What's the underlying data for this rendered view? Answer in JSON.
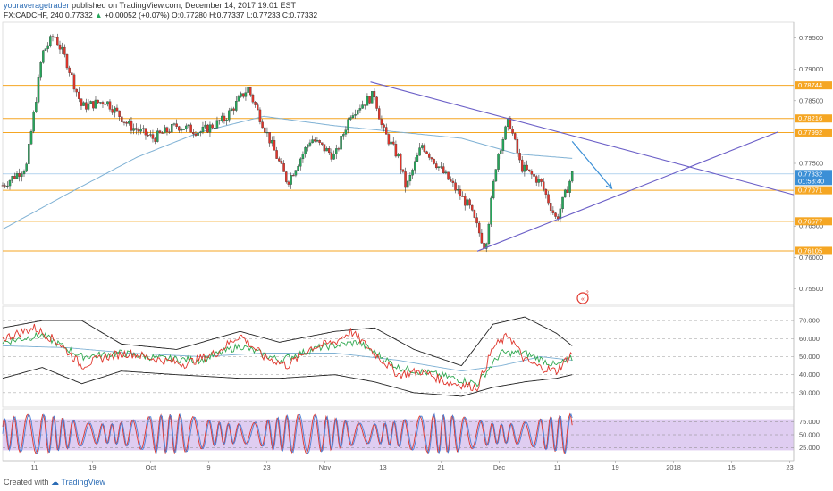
{
  "header": {
    "user": "youraveragetrader",
    "published": "published on TradingView.com, December 14, 2017 19:01 EST",
    "symbol": "FX:CADCHF, 240",
    "last": "0.77332",
    "change_arrow": "▲",
    "change": "+0.00052 (+0.07%)",
    "ohlc": "O:0.77280 H:0.77337 L:0.77233 C:0.77332"
  },
  "footer": {
    "created_with": "Created with",
    "brand": "TradingView"
  },
  "colors": {
    "up": "#26a65b",
    "down": "#e0352b",
    "level": "#f5a623",
    "trendline": "#6b5fc7",
    "ma": "#7fb1d4",
    "arrow": "#3b8fd6",
    "price_tag": "#3b8fd6",
    "stoch_band": "#dcc8f0",
    "rsi_red": "#e0352b",
    "rsi_green": "#2fa84f",
    "rsi_blue": "#7fb1d4",
    "stoch_blue": "#4a7fd6",
    "stoch_red": "#e0352b"
  },
  "chart_data": {
    "type": "candlestick",
    "symbol": "FX:CADCHF",
    "timeframe": "240",
    "ylim": [
      0.7525,
      0.7975
    ],
    "price_axis_ticks": [
      "0.79500",
      "0.79000",
      "0.78500",
      "0.77500",
      "0.76500",
      "0.76000",
      "0.75500"
    ],
    "x_tick_labels": [
      "11",
      "19",
      "Oct",
      "9",
      "23",
      "Nov",
      "13",
      "21",
      "Dec",
      "11",
      "19",
      "2018",
      "15",
      "23"
    ],
    "horizontal_levels": [
      "0.78744",
      "0.78216",
      "0.77992",
      "0.77071",
      "0.76577",
      "0.76105"
    ],
    "current_price": "0.77332",
    "countdown": "01:58:40",
    "price_path": [
      [
        0,
        0.7715
      ],
      [
        0.03,
        0.7745
      ],
      [
        0.05,
        0.7925
      ],
      [
        0.065,
        0.7955
      ],
      [
        0.08,
        0.7915
      ],
      [
        0.1,
        0.784
      ],
      [
        0.13,
        0.785
      ],
      [
        0.16,
        0.781
      ],
      [
        0.19,
        0.779
      ],
      [
        0.22,
        0.781
      ],
      [
        0.25,
        0.78
      ],
      [
        0.28,
        0.782
      ],
      [
        0.31,
        0.787
      ],
      [
        0.33,
        0.781
      ],
      [
        0.36,
        0.772
      ],
      [
        0.39,
        0.779
      ],
      [
        0.42,
        0.776
      ],
      [
        0.44,
        0.783
      ],
      [
        0.47,
        0.786
      ],
      [
        0.48,
        0.7805
      ],
      [
        0.5,
        0.776
      ],
      [
        0.51,
        0.771
      ],
      [
        0.53,
        0.778
      ],
      [
        0.56,
        0.773
      ],
      [
        0.59,
        0.768
      ],
      [
        0.61,
        0.7615
      ],
      [
        0.625,
        0.776
      ],
      [
        0.64,
        0.782
      ],
      [
        0.655,
        0.7745
      ],
      [
        0.68,
        0.772
      ],
      [
        0.7,
        0.766
      ],
      [
        0.72,
        0.7733
      ]
    ],
    "ma_path": [
      [
        0,
        0.7645
      ],
      [
        0.08,
        0.77
      ],
      [
        0.17,
        0.776
      ],
      [
        0.25,
        0.78
      ],
      [
        0.33,
        0.7825
      ],
      [
        0.42,
        0.781
      ],
      [
        0.5,
        0.78
      ],
      [
        0.58,
        0.779
      ],
      [
        0.65,
        0.7765
      ],
      [
        0.72,
        0.7758
      ]
    ],
    "trendline_upper": [
      [
        0.465,
        0.788
      ],
      [
        1.0,
        0.77
      ]
    ],
    "trendline_lower": [
      [
        0.6,
        0.761
      ],
      [
        0.98,
        0.78
      ]
    ],
    "projection_arrow": [
      [
        0.72,
        0.7785
      ],
      [
        0.77,
        0.771
      ]
    ],
    "rsi": {
      "ticks": [
        "70.000",
        "60.000",
        "50.000",
        "40.000",
        "30.000"
      ],
      "ylim": [
        22,
        78
      ],
      "main": [
        [
          0,
          60
        ],
        [
          0.04,
          66
        ],
        [
          0.07,
          58
        ],
        [
          0.1,
          45
        ],
        [
          0.13,
          50
        ],
        [
          0.16,
          52
        ],
        [
          0.2,
          48
        ],
        [
          0.23,
          46
        ],
        [
          0.27,
          52
        ],
        [
          0.3,
          62
        ],
        [
          0.33,
          50
        ],
        [
          0.36,
          45
        ],
        [
          0.39,
          55
        ],
        [
          0.42,
          58
        ],
        [
          0.44,
          64
        ],
        [
          0.47,
          52
        ],
        [
          0.5,
          40
        ],
        [
          0.53,
          42
        ],
        [
          0.56,
          36
        ],
        [
          0.6,
          33
        ],
        [
          0.62,
          55
        ],
        [
          0.64,
          62
        ],
        [
          0.66,
          48
        ],
        [
          0.68,
          44
        ],
        [
          0.7,
          42
        ],
        [
          0.72,
          52
        ]
      ],
      "signal": [
        [
          0,
          58
        ],
        [
          0.05,
          62
        ],
        [
          0.1,
          50
        ],
        [
          0.15,
          52
        ],
        [
          0.2,
          49
        ],
        [
          0.25,
          48
        ],
        [
          0.3,
          56
        ],
        [
          0.35,
          48
        ],
        [
          0.4,
          55
        ],
        [
          0.45,
          58
        ],
        [
          0.5,
          44
        ],
        [
          0.55,
          40
        ],
        [
          0.6,
          35
        ],
        [
          0.63,
          52
        ],
        [
          0.66,
          52
        ],
        [
          0.7,
          45
        ],
        [
          0.72,
          49
        ]
      ],
      "ma": [
        [
          0,
          56
        ],
        [
          0.08,
          55
        ],
        [
          0.16,
          52
        ],
        [
          0.25,
          50
        ],
        [
          0.33,
          52
        ],
        [
          0.42,
          52
        ],
        [
          0.5,
          48
        ],
        [
          0.58,
          42
        ],
        [
          0.63,
          45
        ],
        [
          0.68,
          50
        ],
        [
          0.72,
          48
        ]
      ],
      "bb_upper": [
        [
          0,
          66
        ],
        [
          0.05,
          70
        ],
        [
          0.1,
          70
        ],
        [
          0.15,
          57
        ],
        [
          0.22,
          54
        ],
        [
          0.3,
          64
        ],
        [
          0.35,
          58
        ],
        [
          0.42,
          64
        ],
        [
          0.47,
          66
        ],
        [
          0.52,
          54
        ],
        [
          0.58,
          45
        ],
        [
          0.62,
          68
        ],
        [
          0.66,
          72
        ],
        [
          0.7,
          63
        ],
        [
          0.72,
          56
        ]
      ],
      "bb_lower": [
        [
          0,
          38
        ],
        [
          0.05,
          44
        ],
        [
          0.1,
          35
        ],
        [
          0.15,
          42
        ],
        [
          0.22,
          40
        ],
        [
          0.3,
          38
        ],
        [
          0.35,
          38
        ],
        [
          0.42,
          40
        ],
        [
          0.47,
          36
        ],
        [
          0.52,
          30
        ],
        [
          0.58,
          28
        ],
        [
          0.62,
          33
        ],
        [
          0.66,
          36
        ],
        [
          0.7,
          38
        ],
        [
          0.72,
          40
        ]
      ]
    },
    "stoch": {
      "ticks": [
        "75.000",
        "50.000",
        "25.000"
      ],
      "ylim": [
        0,
        100
      ],
      "band": [
        20,
        80
      ]
    }
  }
}
